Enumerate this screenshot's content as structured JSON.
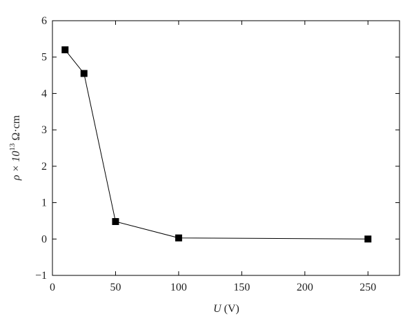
{
  "chart_data": {
    "type": "line",
    "xlabel": {
      "var": "U",
      "unit": "(V)"
    },
    "ylabel": {
      "base": "ρ × 10",
      "sup": "13",
      "unit": "Ω·cm"
    },
    "x": [
      10,
      25,
      50,
      100,
      250
    ],
    "series": [
      {
        "color": "#000000",
        "values": [
          5.2,
          4.55,
          0.48,
          0.03,
          0.0
        ]
      }
    ],
    "xlim": [
      0,
      275
    ],
    "xticks": [
      0,
      50,
      100,
      150,
      200,
      250
    ],
    "ylim": [
      -1,
      6
    ],
    "yticks": [
      {
        "value": -1,
        "label": "−1"
      },
      0,
      1,
      2,
      3,
      4,
      5,
      6
    ],
    "marker": "square",
    "grid": false
  }
}
